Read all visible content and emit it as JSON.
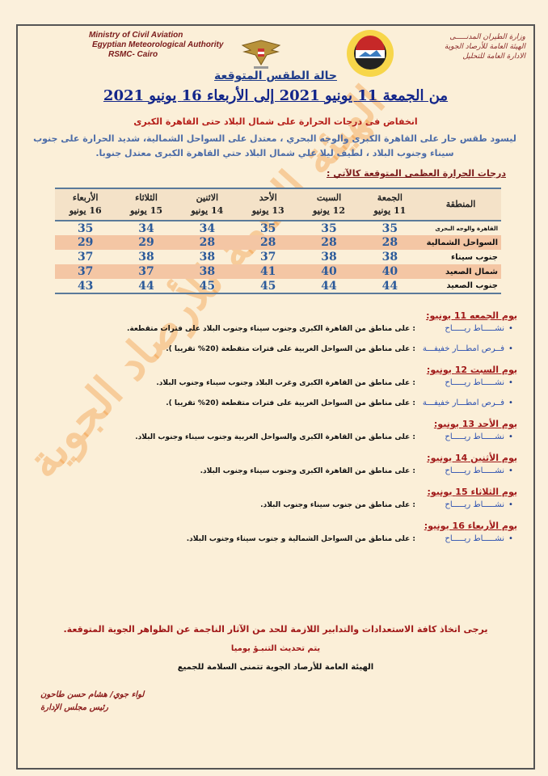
{
  "header": {
    "english_lines": [
      "Ministry of Civil Aviation",
      "Egyptian Meteorological Authority",
      "RSMC- Cairo"
    ],
    "arabic_lines": [
      "وزارة الطيران المدنـــــى",
      "الهيئة العامة للأرصاد الجوية",
      "الادارة العامة للتحليل"
    ]
  },
  "title": "حالة الطقس المتوقعة",
  "date_range": "من الجمعة 11 يونيو 2021  إلى الأربعاء 16 يونيو 2021",
  "headline": "انخفاض فى درجات الحرارة على شمال البلاد حتى القاهرة الكبرى",
  "summary": "ليسود طقس حار على القاهرة الكبرى والوجه البحري ، معتدل على السواحل الشمالية، شديد الحرارة على جنوب سيناء وجنوب البلاد ، لطيف ليلا علي شمال البلاد حتي القاهرة الكبرى معتدل جنوبا.",
  "table_label": "درجات الحرارة العظمى المتوقعة كالآتي :",
  "table": {
    "region_header": "المنطقة",
    "days": [
      {
        "day": "الجمعة",
        "date": "11 يونيو"
      },
      {
        "day": "السبت",
        "date": "12 يونيو"
      },
      {
        "day": "الأحد",
        "date": "13 يونيو"
      },
      {
        "day": "الاثنين",
        "date": "14 يونيو"
      },
      {
        "day": "الثلاثاء",
        "date": "15 يونيو"
      },
      {
        "day": "الأربعاء",
        "date": "16 يونيو"
      }
    ],
    "rows": [
      {
        "region": "القاهرة والوجه البحرى",
        "values": [
          "35",
          "35",
          "35",
          "34",
          "34",
          "35"
        ]
      },
      {
        "region": "السواحل الشمالية",
        "values": [
          "28",
          "28",
          "28",
          "28",
          "29",
          "29"
        ]
      },
      {
        "region": "جنوب سيناء",
        "values": [
          "38",
          "38",
          "37",
          "38",
          "38",
          "37"
        ]
      },
      {
        "region": "شمال الصعيد",
        "values": [
          "40",
          "40",
          "41",
          "38",
          "37",
          "37"
        ]
      },
      {
        "region": "جنوب الصعيد",
        "values": [
          "44",
          "44",
          "45",
          "45",
          "44",
          "43"
        ]
      }
    ]
  },
  "daily": [
    {
      "heading": "يوم الجمعه 11 يونيو:",
      "items": [
        {
          "label": "نشـــــاط ريـــــاح",
          "text": ": على مناطق من القاهرة الكبرى وجنوب سيناء وجنوب البلاد على فترات متقطعة."
        },
        {
          "label": "فــرص امطـــار خفيفـــة",
          "text": ": على مناطق من السواحل الغربية على فترات متقطعة (20% تقريبا )."
        }
      ]
    },
    {
      "heading": "يوم السبت 12 يونيو:",
      "items": [
        {
          "label": "نشـــــاط ريـــــاح",
          "text": ": على مناطق من القاهرة الكبرى وغرب البلاد وجنوب سيناء وجنوب البلاد."
        },
        {
          "label": "فــرص امطـــار خفيفـــة",
          "text": ": على مناطق من السواحل الغربية على فترات متقطعة (20% تقريبا )."
        }
      ]
    },
    {
      "heading": "يوم الأحد 13 يونيو:",
      "items": [
        {
          "label": "نشـــــاط ريـــــاح",
          "text": ": على مناطق من القاهرة الكبرى  والسواحل الغربية وجنوب سيناء وجنوب البلاد."
        }
      ]
    },
    {
      "heading": "يوم الأثنين 14 يونيو:",
      "items": [
        {
          "label": "نشـــــاط ريـــــاح",
          "text": ": على مناطق من القاهرة الكبرى وجنوب سيناء وجنوب البلاد."
        }
      ]
    },
    {
      "heading": "يوم الثلاثاء 15 يونيو:",
      "items": [
        {
          "label": "نشـــــاط ريـــــاح",
          "text": ": على مناطق من جنوب سيناء وجنوب البلاد."
        }
      ]
    },
    {
      "heading": "يوم الأربعاء 16 يونيو:",
      "items": [
        {
          "label": "نشـــــاط ريـــــاح",
          "text": ": على مناطق من السواحل الشمالية و جنوب سيناء وجنوب البلاد."
        }
      ]
    }
  ],
  "closing": {
    "advice": "يرجى اتخاذ كافة الاستعدادات والتدابير اللازمة للحد من الآثار الناجمة عن الظواهر الجوية المتوقعة.",
    "update": "يتم تحديث التنبـؤ يوميا",
    "wish": "الهيئة العامة للأرصاد الجوية تتمنى السلامة للجميع"
  },
  "signature": {
    "name": "لواء جوي/ هشام حسن طاحون",
    "title": "رئيس مجلس الإدارة"
  },
  "watermark": "الهيئة العامة للأرصاد الجوية",
  "colors": {
    "title_blue": "#13268a",
    "alert_red": "#b51f1a",
    "table_alt": "#f4c6a4",
    "values_blue": "#2b5a9a",
    "watermark": "#f08c28"
  }
}
